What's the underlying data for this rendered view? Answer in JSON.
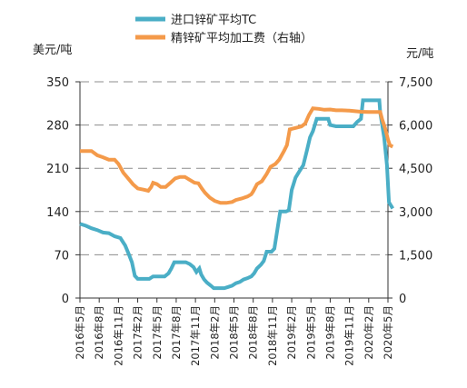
{
  "chart_data": {
    "type": "line",
    "legend_placement": "top",
    "y_left_unit": "美元/吨",
    "y_right_unit": "元/吨",
    "y_left_ticks": [
      "0",
      "70",
      "140",
      "210",
      "280",
      "350"
    ],
    "y_right_ticks": [
      "0",
      "1,500",
      "3,000",
      "4,500",
      "6,000",
      "7,500"
    ],
    "ylim_left": [
      0,
      350
    ],
    "ylim_right": [
      0,
      7500
    ],
    "grid": "horizontal dashed",
    "categories": [
      "2016年5月",
      "2016年8月",
      "2016年11月",
      "2017年2月",
      "2017年5月",
      "2017年8月",
      "2017年11月",
      "2018年2月",
      "2018年5月",
      "2018年8月",
      "2018年11月",
      "2019年2月",
      "2019年5月",
      "2019年8月",
      "2019年11月",
      "2020年2月",
      "2020年5月"
    ],
    "series": [
      {
        "name": "进口锌矿平均TC",
        "axis": "left",
        "color": "#4aaec6",
        "points": [
          [
            0,
            120
          ],
          [
            0.3,
            117
          ],
          [
            0.6,
            113
          ],
          [
            0.9,
            110
          ],
          [
            1.2,
            106
          ],
          [
            1.5,
            105
          ],
          [
            1.8,
            100
          ],
          [
            2.1,
            97
          ],
          [
            2.35,
            85
          ],
          [
            2.55,
            70
          ],
          [
            2.7,
            58
          ],
          [
            2.85,
            36
          ],
          [
            3.0,
            31
          ],
          [
            3.3,
            31
          ],
          [
            3.6,
            31
          ],
          [
            3.8,
            35
          ],
          [
            4.1,
            35
          ],
          [
            4.4,
            35
          ],
          [
            4.6,
            40
          ],
          [
            4.75,
            48
          ],
          [
            4.9,
            58
          ],
          [
            5.2,
            58
          ],
          [
            5.5,
            58
          ],
          [
            5.7,
            55
          ],
          [
            5.9,
            50
          ],
          [
            6.05,
            42
          ],
          [
            6.2,
            48
          ],
          [
            6.3,
            38
          ],
          [
            6.45,
            30
          ],
          [
            6.6,
            25
          ],
          [
            6.8,
            20
          ],
          [
            6.95,
            16
          ],
          [
            7.2,
            16
          ],
          [
            7.5,
            16
          ],
          [
            7.7,
            18
          ],
          [
            7.9,
            20
          ],
          [
            8.1,
            24
          ],
          [
            8.3,
            26
          ],
          [
            8.5,
            30
          ],
          [
            8.7,
            32
          ],
          [
            8.9,
            35
          ],
          [
            9.05,
            40
          ],
          [
            9.2,
            48
          ],
          [
            9.4,
            54
          ],
          [
            9.55,
            60
          ],
          [
            9.7,
            75
          ],
          [
            9.95,
            75
          ],
          [
            10.1,
            80
          ],
          [
            10.25,
            110
          ],
          [
            10.4,
            140
          ],
          [
            10.7,
            140
          ],
          [
            10.85,
            142
          ],
          [
            11.0,
            175
          ],
          [
            11.2,
            195
          ],
          [
            11.4,
            205
          ],
          [
            11.6,
            215
          ],
          [
            11.8,
            240
          ],
          [
            11.95,
            260
          ],
          [
            12.1,
            270
          ],
          [
            12.3,
            290
          ],
          [
            12.7,
            290
          ],
          [
            12.9,
            290
          ],
          [
            13.0,
            280
          ],
          [
            13.3,
            278
          ],
          [
            13.7,
            278
          ],
          [
            14.0,
            278
          ],
          [
            14.2,
            278
          ],
          [
            14.4,
            285
          ],
          [
            14.6,
            290
          ],
          [
            14.7,
            320
          ],
          [
            15.0,
            320
          ],
          [
            15.3,
            320
          ],
          [
            15.55,
            320
          ],
          [
            15.6,
            300
          ],
          [
            15.8,
            260
          ],
          [
            15.95,
            215
          ],
          [
            16.05,
            155
          ],
          [
            16.15,
            150
          ],
          [
            16.25,
            145
          ]
        ]
      },
      {
        "name": "精锌矿平均加工费（右轴）",
        "axis": "right",
        "color": "#f49a4a",
        "points": [
          [
            0,
            5100
          ],
          [
            0.3,
            5100
          ],
          [
            0.6,
            5100
          ],
          [
            0.9,
            4950
          ],
          [
            1.2,
            4880
          ],
          [
            1.5,
            4800
          ],
          [
            1.8,
            4800
          ],
          [
            2.0,
            4650
          ],
          [
            2.25,
            4350
          ],
          [
            2.5,
            4150
          ],
          [
            2.75,
            3950
          ],
          [
            3.0,
            3800
          ],
          [
            3.3,
            3760
          ],
          [
            3.55,
            3720
          ],
          [
            3.7,
            3850
          ],
          [
            3.8,
            4000
          ],
          [
            4.0,
            3950
          ],
          [
            4.2,
            3850
          ],
          [
            4.45,
            3850
          ],
          [
            4.7,
            4000
          ],
          [
            4.95,
            4150
          ],
          [
            5.2,
            4200
          ],
          [
            5.45,
            4200
          ],
          [
            5.7,
            4100
          ],
          [
            5.95,
            4000
          ],
          [
            6.15,
            3980
          ],
          [
            6.35,
            3780
          ],
          [
            6.5,
            3650
          ],
          [
            6.75,
            3480
          ],
          [
            7.0,
            3370
          ],
          [
            7.3,
            3300
          ],
          [
            7.6,
            3300
          ],
          [
            7.9,
            3330
          ],
          [
            8.1,
            3400
          ],
          [
            8.4,
            3450
          ],
          [
            8.7,
            3520
          ],
          [
            8.9,
            3600
          ],
          [
            9.0,
            3700
          ],
          [
            9.2,
            3950
          ],
          [
            9.45,
            4050
          ],
          [
            9.7,
            4300
          ],
          [
            9.9,
            4550
          ],
          [
            10.15,
            4650
          ],
          [
            10.35,
            4800
          ],
          [
            10.6,
            5100
          ],
          [
            10.75,
            5300
          ],
          [
            10.9,
            5850
          ],
          [
            11.2,
            5900
          ],
          [
            11.5,
            5950
          ],
          [
            11.7,
            6050
          ],
          [
            11.9,
            6350
          ],
          [
            12.1,
            6580
          ],
          [
            12.4,
            6560
          ],
          [
            12.7,
            6530
          ],
          [
            13.0,
            6540
          ],
          [
            13.3,
            6510
          ],
          [
            13.6,
            6510
          ],
          [
            14.0,
            6500
          ],
          [
            14.3,
            6480
          ],
          [
            14.6,
            6460
          ],
          [
            15.0,
            6450
          ],
          [
            15.4,
            6450
          ],
          [
            15.6,
            6450
          ],
          [
            15.7,
            6200
          ],
          [
            15.85,
            5900
          ],
          [
            16.0,
            5500
          ],
          [
            16.1,
            5300
          ],
          [
            16.25,
            5250
          ]
        ]
      }
    ]
  }
}
